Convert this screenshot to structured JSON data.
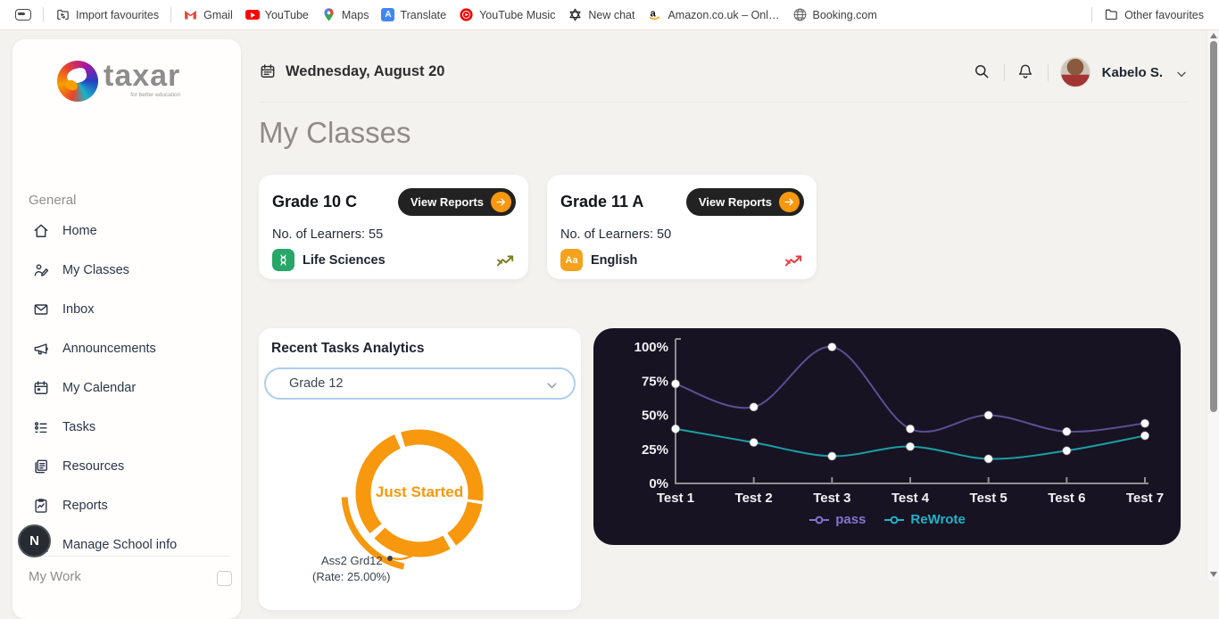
{
  "browser": {
    "import_favourites": "Import favourites",
    "other_favourites": "Other favourites",
    "favourites": [
      {
        "label": "Gmail"
      },
      {
        "label": "YouTube"
      },
      {
        "label": "Maps"
      },
      {
        "label": "Translate"
      },
      {
        "label": "YouTube Music"
      },
      {
        "label": "New chat"
      },
      {
        "label": "Amazon.co.uk – Onl…"
      },
      {
        "label": "Booking.com"
      }
    ]
  },
  "sidebar": {
    "logo_text": "taxar",
    "logo_tagline": "for better education",
    "section": "General",
    "items": [
      {
        "label": "Home"
      },
      {
        "label": "My Classes"
      },
      {
        "label": "Inbox"
      },
      {
        "label": "Announcements"
      },
      {
        "label": "My Calendar"
      },
      {
        "label": "Tasks"
      },
      {
        "label": "Resources"
      },
      {
        "label": "Reports"
      },
      {
        "label": "Manage School info"
      }
    ],
    "floating_badge": "N",
    "footer_section": "My Work"
  },
  "header": {
    "date": "Wednesday, August 20",
    "user_name": "Kabelo S."
  },
  "page": {
    "title": "My Classes"
  },
  "class_cards": [
    {
      "title": "Grade 10 C",
      "button_label": "View Reports",
      "learners": "No. of Learners: 55",
      "subject": "Life Sciences",
      "subject_icon": "dna-icon",
      "subject_color": "#27a768",
      "trend_color": "#7c7a1e"
    },
    {
      "title": "Grade 11 A",
      "button_label": "View Reports",
      "learners": "No. of Learners: 50",
      "subject": "English",
      "subject_abbr": "Aa",
      "subject_icon": "aa-icon",
      "subject_color": "#f6a21c",
      "trend_color": "#e23a3f"
    }
  ],
  "analytics": {
    "title": "Recent Tasks Analytics",
    "dropdown_value": "Grade 12"
  },
  "colors": {
    "accent_orange": "#f7980e",
    "button_dark": "#222222",
    "page_background": "#f4f2ee",
    "chart_background": "#171322"
  },
  "icons": {
    "search": "magnifier",
    "notifications": "bell",
    "calendar": "calendar",
    "dropdown": "chevron-down",
    "view_reports": "arrow-right-circle"
  },
  "chart_data": [
    {
      "type": "donut",
      "center_label": "Just Started",
      "task_label": "Ass2 Grd12",
      "rate_label": "(Rate: 25.00%)",
      "rate_percent": 25.0,
      "color": "#f7980e",
      "segments_deg": [
        [
          343,
          97
        ],
        [
          100,
          145
        ],
        [
          151,
          225
        ],
        [
          231,
          337
        ]
      ],
      "highlight_arc_deg": [
        192,
        267
      ]
    },
    {
      "type": "line",
      "categories": [
        "Test 1",
        "Test 2",
        "Test 3",
        "Test 4",
        "Test 5",
        "Test 6",
        "Test 7"
      ],
      "series": [
        {
          "name": "pass",
          "color": "#5b4e94",
          "legend_color": "#8274cd",
          "values": [
            73,
            56,
            100,
            40,
            50,
            38,
            44
          ]
        },
        {
          "name": "ReWrote",
          "color": "#1b9fa5",
          "legend_color": "#1fb3c9",
          "values": [
            40,
            30,
            20,
            27,
            18,
            24,
            35
          ]
        }
      ],
      "y_ticks": [
        "0%",
        "25%",
        "50%",
        "75%",
        "100%"
      ],
      "ylim": [
        0,
        100
      ],
      "legend_position": "bottom",
      "grid": false,
      "axis_color": "#8f8f94",
      "label_color": "#f2f1f6"
    }
  ]
}
